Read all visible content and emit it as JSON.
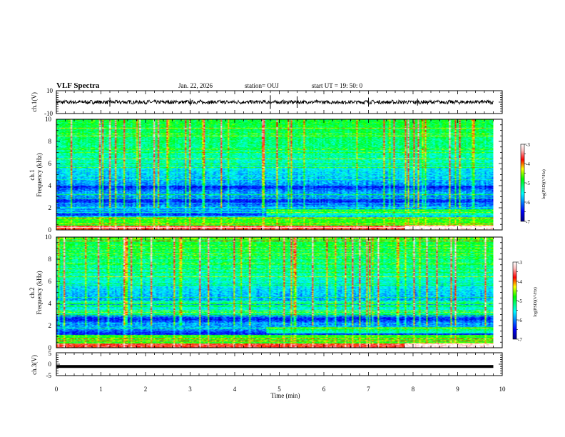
{
  "header": {
    "title": "VLF Spectra",
    "date": "Jan. 22, 2026",
    "station": "station= OUJ",
    "start": "start UT =  19: 50: 0"
  },
  "chart_data": [
    {
      "type": "line",
      "name": "ch1-waveform",
      "ylabel": "ch.1(V)",
      "ylim": [
        -10,
        10
      ],
      "yticks": [
        "10",
        "-10"
      ],
      "xlim": [
        0,
        10
      ]
    },
    {
      "type": "heatmap",
      "name": "ch1-spectrogram",
      "ylabel_line1": "ch.1",
      "ylabel_line2": "Frequency (kHz)",
      "ylim": [
        0,
        10
      ],
      "yticks": [
        "0",
        "2",
        "4",
        "6",
        "8",
        "10"
      ],
      "xlim": [
        0,
        9.8
      ],
      "colorbar": {
        "label": "log(PSD)(V²/Hz)",
        "range": [
          -7,
          -3
        ],
        "ticks": [
          "-3",
          "-4",
          "-5",
          "-6",
          "-7"
        ]
      }
    },
    {
      "type": "heatmap",
      "name": "ch2-spectrogram",
      "ylabel_line1": "ch.2",
      "ylabel_line2": "Frequency (kHz)",
      "ylim": [
        0,
        10
      ],
      "yticks": [
        "0",
        "2",
        "4",
        "6",
        "8",
        "10"
      ],
      "xlim": [
        0,
        9.8
      ],
      "colorbar": {
        "label": "log(PSD)(V²/Hz)",
        "range": [
          -7,
          -3
        ],
        "ticks": [
          "-3",
          "-4",
          "-5",
          "-6",
          "-7"
        ]
      }
    },
    {
      "type": "line",
      "name": "ch3-waveform",
      "ylabel": "ch.3(V)",
      "ylim": [
        -5,
        5
      ],
      "yticks": [
        "5",
        "0",
        "-5"
      ],
      "y_value": -1,
      "xlim": [
        0,
        10
      ],
      "xlabel": "Time (min)",
      "xticks": [
        "0",
        "1",
        "2",
        "3",
        "4",
        "5",
        "6",
        "7",
        "8",
        "9",
        "10"
      ]
    }
  ]
}
